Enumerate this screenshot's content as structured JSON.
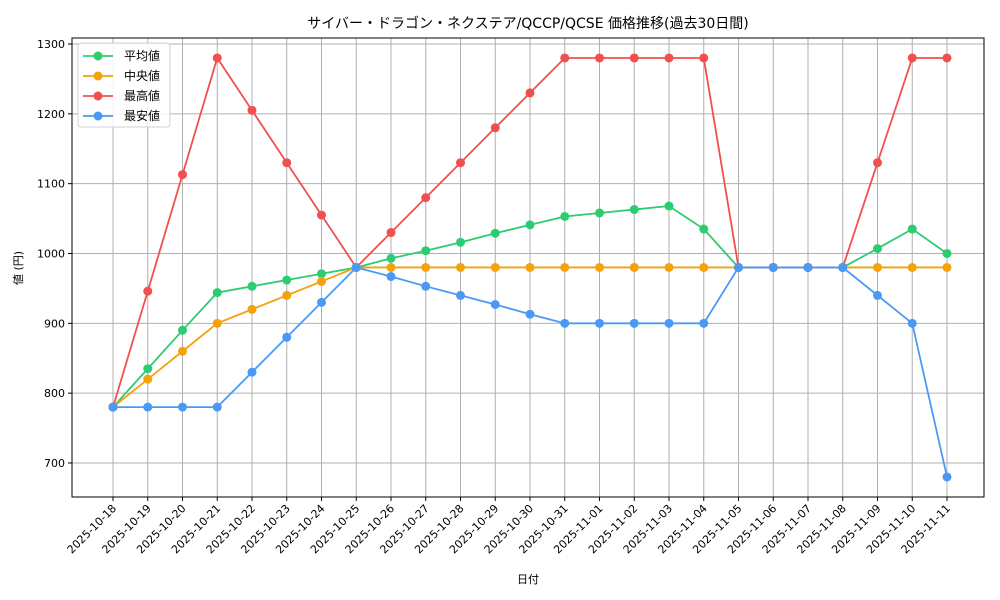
{
  "chart_data": {
    "type": "line",
    "title": "サイバー・ドラゴン・ネクステア/QCCP/QCSE 価格推移(過去30日間)",
    "xlabel": "日付",
    "ylabel": "値 (円)",
    "ylim": [
      650,
      1310
    ],
    "yticks": [
      700,
      800,
      900,
      1000,
      1100,
      1200,
      1300
    ],
    "grid": true,
    "legend_position": "upper left",
    "categories": [
      "2025-10-18",
      "2025-10-19",
      "2025-10-20",
      "2025-10-21",
      "2025-10-22",
      "2025-10-23",
      "2025-10-24",
      "2025-10-25",
      "2025-10-26",
      "2025-10-27",
      "2025-10-28",
      "2025-10-29",
      "2025-10-30",
      "2025-10-31",
      "2025-11-01",
      "2025-11-02",
      "2025-11-03",
      "2025-11-04",
      "2025-11-05",
      "2025-11-06",
      "2025-11-07",
      "2025-11-08",
      "2025-11-09",
      "2025-11-10",
      "2025-11-11"
    ],
    "series": [
      {
        "name": "平均値",
        "color": "#2ecc71",
        "values": [
          780,
          835,
          890,
          944,
          953,
          962,
          971,
          980,
          993,
          1004,
          1016,
          1029,
          1041,
          1053,
          1058,
          1063,
          1068,
          1035,
          980,
          980,
          980,
          980,
          1007,
          1035,
          1000
        ]
      },
      {
        "name": "中央値",
        "color": "#f5a20a",
        "values": [
          780,
          820,
          860,
          900,
          920,
          940,
          960,
          980,
          980,
          980,
          980,
          980,
          980,
          980,
          980,
          980,
          980,
          980,
          980,
          980,
          980,
          980,
          980,
          980,
          980
        ]
      },
      {
        "name": "最高値",
        "color": "#f05050",
        "values": [
          780,
          946,
          1113,
          1280,
          1205,
          1130,
          1055,
          980,
          1030,
          1080,
          1130,
          1180,
          1230,
          1280,
          1280,
          1280,
          1280,
          1280,
          980,
          980,
          980,
          980,
          1130,
          1280,
          1280
        ]
      },
      {
        "name": "最安値",
        "color": "#4a9af5",
        "values": [
          780,
          780,
          780,
          780,
          830,
          880,
          930,
          980,
          967,
          953,
          940,
          927,
          913,
          900,
          900,
          900,
          900,
          900,
          980,
          980,
          980,
          980,
          940,
          900,
          680
        ]
      }
    ]
  }
}
